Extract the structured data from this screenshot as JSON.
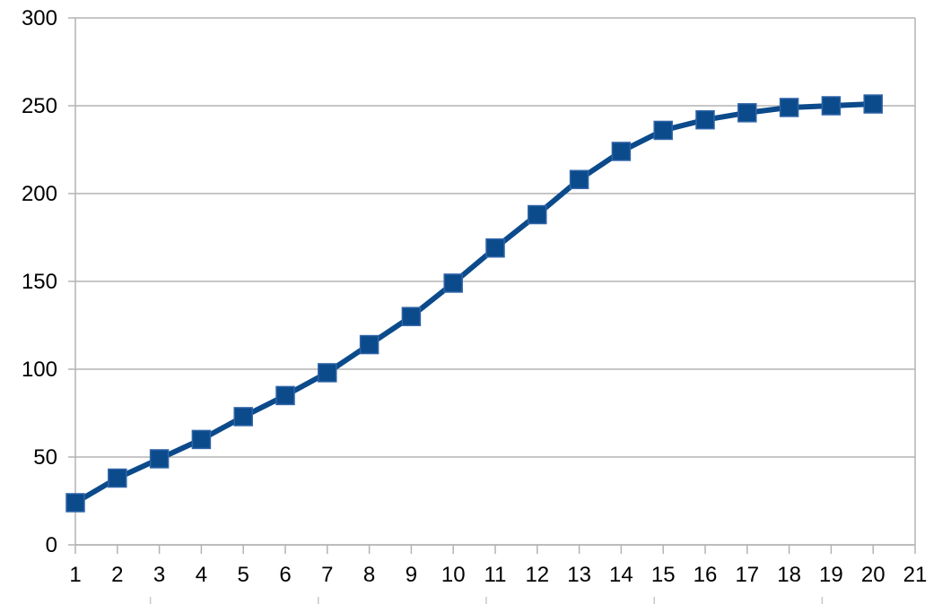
{
  "chart_data": {
    "type": "line",
    "title": "",
    "xlabel": "",
    "ylabel": "",
    "x": [
      1,
      2,
      3,
      4,
      5,
      6,
      7,
      8,
      9,
      10,
      11,
      12,
      13,
      14,
      15,
      16,
      17,
      18,
      19,
      20
    ],
    "x_ticks": [
      "1",
      "2",
      "3",
      "4",
      "5",
      "6",
      "7",
      "8",
      "9",
      "10",
      "11",
      "12",
      "13",
      "14",
      "15",
      "16",
      "17",
      "18",
      "19",
      "20",
      "21"
    ],
    "xlim": [
      1,
      21
    ],
    "ylim": [
      0,
      300
    ],
    "y_ticks": [
      0,
      50,
      100,
      150,
      200,
      250,
      300
    ],
    "grid": "horizontal",
    "legend": "none",
    "series": [
      {
        "values": [
          24,
          38,
          49,
          60,
          73,
          85,
          98,
          114,
          130,
          149,
          169,
          188,
          208,
          224,
          236,
          242,
          246,
          249,
          250,
          251
        ],
        "color": "#0b4a8b",
        "marker": "square"
      }
    ],
    "colors": {
      "grid": "#b3b3b3",
      "axis": "#b3b3b3",
      "series": "#0b4a8b"
    }
  }
}
